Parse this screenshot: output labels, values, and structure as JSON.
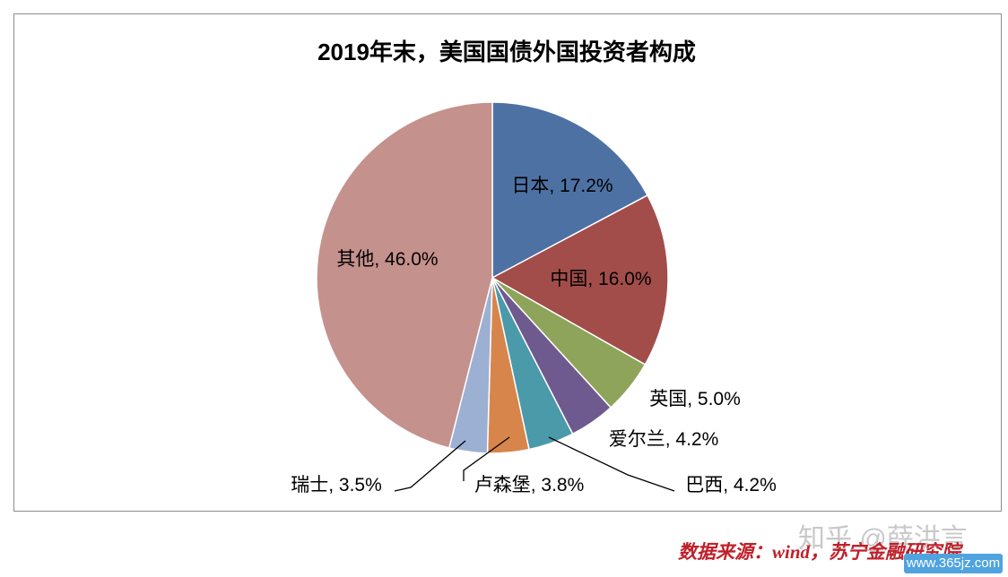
{
  "colors": {
    "日本": "#4e71a3",
    "中国": "#a24d4a",
    "英国": "#8ea45a",
    "爱尔兰": "#6e5a8e",
    "巴西": "#4a9aaa",
    "卢森堡": "#d8854b",
    "瑞士": "#9cb0d3",
    "其他": "#c4918d",
    "source": "#c0202a"
  },
  "chart_data": {
    "type": "pie",
    "title": "2019年末，美国国债外国投资者构成",
    "start_angle_deg": 0,
    "direction": "clockwise",
    "slices": [
      {
        "name": "日本",
        "value": 17.2,
        "label": "日本, 17.2%"
      },
      {
        "name": "中国",
        "value": 16.0,
        "label": "中国, 16.0%"
      },
      {
        "name": "英国",
        "value": 5.0,
        "label": "英国, 5.0%"
      },
      {
        "name": "爱尔兰",
        "value": 4.2,
        "label": "爱尔兰, 4.2%"
      },
      {
        "name": "巴西",
        "value": 4.2,
        "label": "巴西, 4.2%"
      },
      {
        "name": "卢森堡",
        "value": 3.8,
        "label": "卢森堡, 3.8%"
      },
      {
        "name": "瑞士",
        "value": 3.5,
        "label": "瑞士, 3.5%"
      },
      {
        "name": "其他",
        "value": 46.0,
        "label": "其他, 46.0%"
      }
    ]
  },
  "footer": {
    "source": "数据来源：wind，苏宁金融研究院",
    "watermark": "知乎 @薛洪言",
    "site": "www.365jz.com"
  }
}
